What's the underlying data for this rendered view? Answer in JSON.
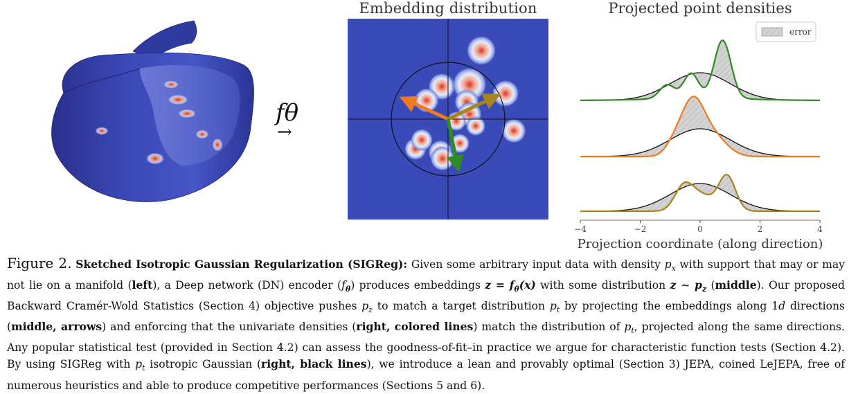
{
  "figure": {
    "arrow_label": "fθ",
    "arrow_symbol": "→",
    "middle_title": "Embedding distribution",
    "right_title": "Projected point densities",
    "legend_label": "error",
    "x_axis_label": "Projection coordinate (along direction)",
    "x_ticks": [
      "−4",
      "−2",
      "0",
      "2",
      "4"
    ],
    "colors": {
      "blue_bg": "#3A4AB9",
      "orange": "#F07A22",
      "olive": "#A8841C",
      "green": "#2E8B22",
      "error_fill": "#D3D3D3"
    }
  },
  "caption": {
    "label": "Figure 2.",
    "t1": "Sketched Isotropic Gaussian Regularization (SIGReg):",
    "t2": " Given some arbitrary input data with density ",
    "t3": " with support that may or may not lie on a manifold (",
    "t4": "left",
    "t5": "), a Deep network (DN) encoder (",
    "t6": ") produces embeddings ",
    "t7": " with some distribution ",
    "t8": " (",
    "t9": "middle",
    "t10": "). Our proposed Backward Cramér-Wold Statistics (Section 4) objective pushes ",
    "t11": " to match a target distribution ",
    "t12": " by projecting the embeddings along 1",
    "t13": " directions (",
    "t14": "middle, arrows",
    "t15": ") and enforcing that the univariate densities (",
    "t16": "right, colored lines",
    "t17": ") match the distribution of ",
    "t18": ", projected along the same directions. Any popular statistical test (provided in Section 4.2) can assess the goodness-of-fit–in practice we argue for characteristic function tests (Section 4.2). By using SIGReg with ",
    "t19": " isotropic Gaussian (",
    "t20": "right, black lines",
    "t21": "), we introduce a lean and provably optimal (Section 3) JEPA, coined LeJEPA, free of numerous heuristics and able to produce competitive performances (Sections 5 and 6).",
    "m_px": "p",
    "m_px_sub": "x",
    "m_f": "f",
    "m_theta": "θ",
    "m_z_eq": "z = f",
    "m_z_eq_tail": "(x)",
    "m_z_sim": "z ∼ p",
    "m_z_sub": "z",
    "m_pz": "p",
    "m_pt": "p",
    "m_t": "t",
    "m_d": "d"
  }
}
